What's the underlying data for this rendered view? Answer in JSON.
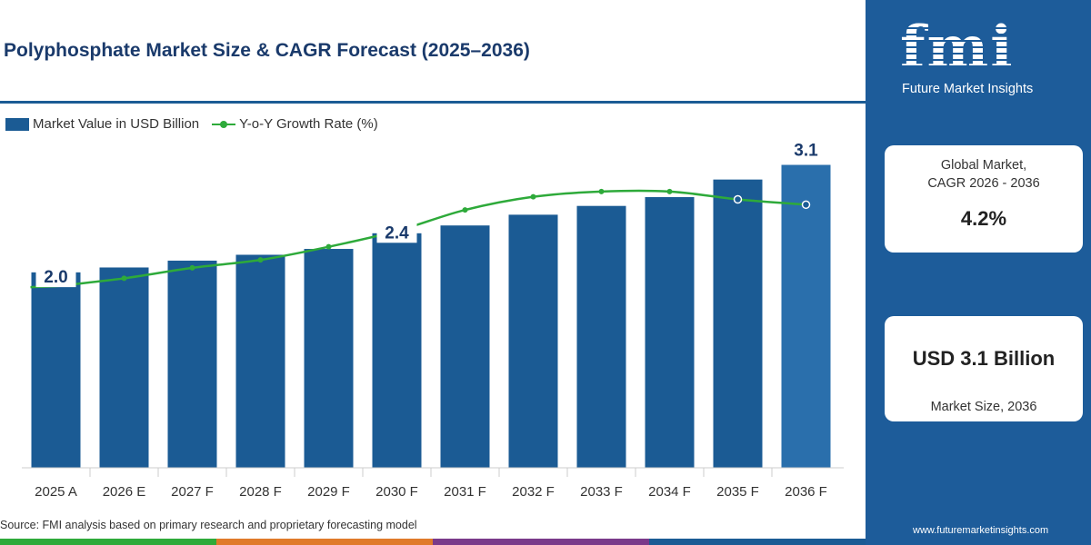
{
  "title": "Polyphosphate Market Size & CAGR Forecast (2025–2036)",
  "legend": {
    "bar_label": "Market Value in USD Billion",
    "line_label": "Y-o-Y Growth Rate (%)"
  },
  "source": "Source: FMI analysis based on primary research and proprietary forecasting model",
  "colors": {
    "bar": "#1b5b94",
    "bar_highlight": "#2a6fac",
    "line": "#2eaa3a",
    "title": "#1a3a6b",
    "panel": "#1d5c9a",
    "stripe": [
      "#2eaa3a",
      "#e07a2a",
      "#7a3a8a",
      "#1b5b94"
    ]
  },
  "chart_data": {
    "type": "bar",
    "categories": [
      "2025 A",
      "2026 E",
      "2027 F",
      "2028 F",
      "2029 F",
      "2030 F",
      "2031 F",
      "2032 F",
      "2033 F",
      "2034 F",
      "2035 F",
      "2036 F"
    ],
    "series": [
      {
        "name": "Market Value in USD Billion",
        "type": "bar",
        "values": [
          2.0,
          2.05,
          2.12,
          2.18,
          2.24,
          2.4,
          2.48,
          2.59,
          2.68,
          2.77,
          2.95,
          3.1
        ]
      },
      {
        "name": "Y-o-Y Growth Rate (%)",
        "type": "line",
        "values": [
          3.45,
          3.6,
          3.8,
          3.95,
          4.2,
          4.5,
          4.9,
          5.15,
          5.25,
          5.25,
          5.1,
          5.0
        ]
      }
    ],
    "data_labels": [
      {
        "index": 0,
        "text": "2.0"
      },
      {
        "index": 5,
        "text": "2.4"
      },
      {
        "index": 11,
        "text": "3.1"
      }
    ],
    "ylim": [
      0,
      3.3
    ],
    "y2lim": [
      0,
      6.3
    ],
    "grid": false,
    "legend_position": "top-left",
    "highlight_index": 11
  },
  "panel": {
    "logo_text": "fmi",
    "logo_subtitle": "Future Market Insights",
    "cagr_label_line1": "Global Market,",
    "cagr_label_line2": "CAGR 2026 - 2036",
    "cagr_value": "4.2%",
    "size_value": "USD 3.1 Billion",
    "size_label": "Market Size, 2036",
    "website": "www.futuremarketinsights.com"
  }
}
